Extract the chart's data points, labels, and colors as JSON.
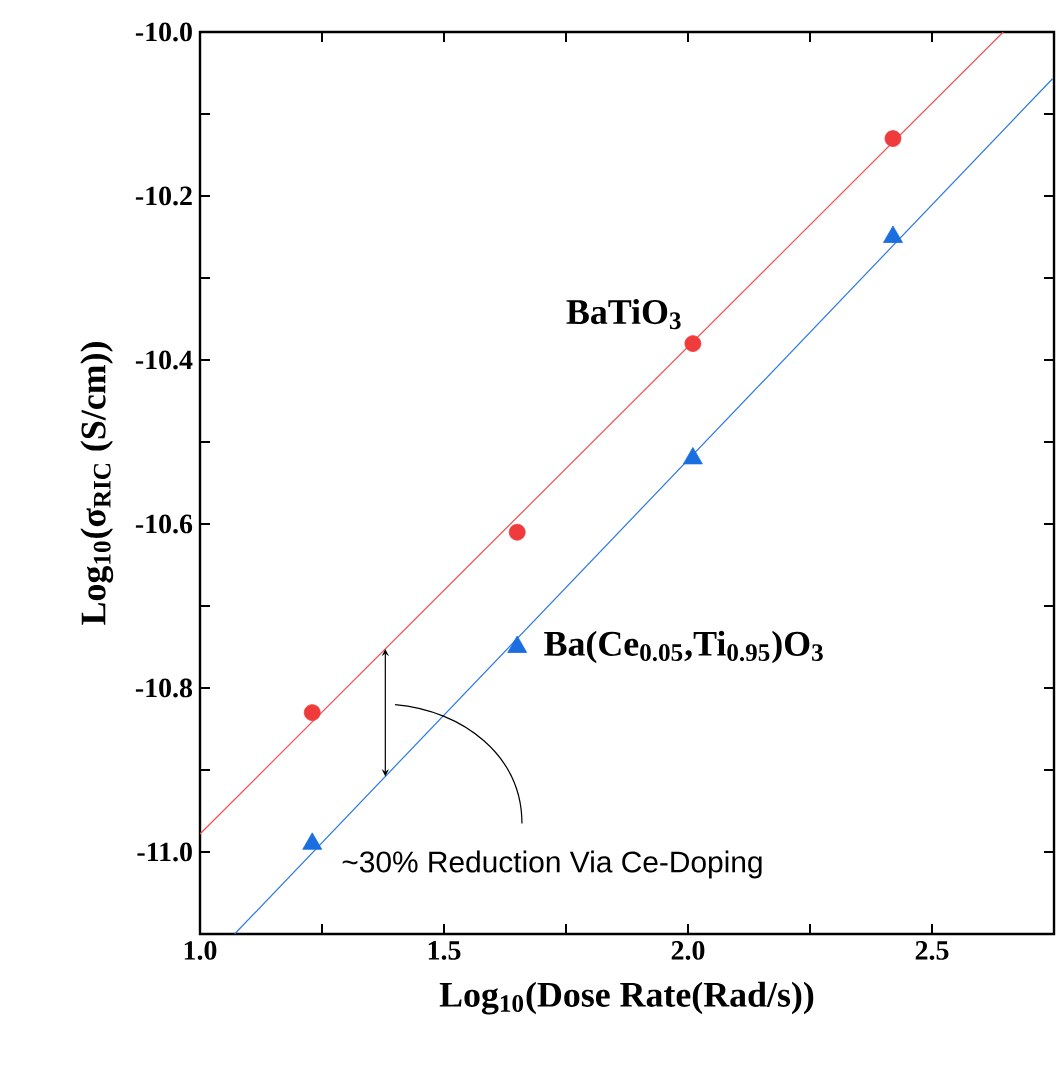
{
  "chart_data": {
    "type": "scatter",
    "xlabel": "Log$_{10}$(Dose Rate(Rad/s))",
    "ylabel": "Log$_{10}$(σ$_{RIC}$ (S/cm))",
    "xlim": [
      1.0,
      2.75
    ],
    "ylim": [
      -11.1,
      -10.0
    ],
    "xticks": [
      {
        "value": 1.0,
        "label": "1.0"
      },
      {
        "value": 1.25,
        "label": null
      },
      {
        "value": 1.5,
        "label": "1.5"
      },
      {
        "value": 1.75,
        "label": null
      },
      {
        "value": 2.0,
        "label": "2.0"
      },
      {
        "value": 2.25,
        "label": null
      },
      {
        "value": 2.5,
        "label": "2.5"
      }
    ],
    "yticks": [
      {
        "value": -11.0,
        "label": "-11.0"
      },
      {
        "value": -10.9,
        "label": null
      },
      {
        "value": -10.8,
        "label": "-10.8"
      },
      {
        "value": -10.7,
        "label": null
      },
      {
        "value": -10.6,
        "label": "-10.6"
      },
      {
        "value": -10.5,
        "label": null
      },
      {
        "value": -10.4,
        "label": "-10.4"
      },
      {
        "value": -10.3,
        "label": null
      },
      {
        "value": -10.2,
        "label": "-10.2"
      },
      {
        "value": -10.1,
        "label": null
      },
      {
        "value": -10.0,
        "label": "-10.0"
      }
    ],
    "series": [
      {
        "type": "line",
        "color": "#f05050",
        "x": [
          1.0,
          2.646
        ],
        "values": [
          -10.978,
          -10.0
        ]
      },
      {
        "type": "line",
        "color": "#2a78e4",
        "x": [
          1.071,
          2.747
        ],
        "values": [
          -11.1,
          -10.057
        ]
      },
      {
        "name": "BaTiO$_{3}$",
        "color": "#ef3b3b",
        "marker": "circle",
        "x": [
          1.23,
          1.65,
          2.01,
          2.42
        ],
        "values": [
          -10.83,
          -10.61,
          -10.38,
          -10.13
        ]
      },
      {
        "name": "Ba(Ce$_{0.05}$,Ti$_{0.95}$)O$_{3}$",
        "color": "#1a6ee0",
        "marker": "triangle",
        "x": [
          1.23,
          1.65,
          2.01,
          2.42
        ],
        "values": [
          -10.99,
          -10.75,
          -10.52,
          -10.25
        ]
      }
    ],
    "annotations": [
      "~30% Reduction Via Ce-Doping"
    ]
  }
}
